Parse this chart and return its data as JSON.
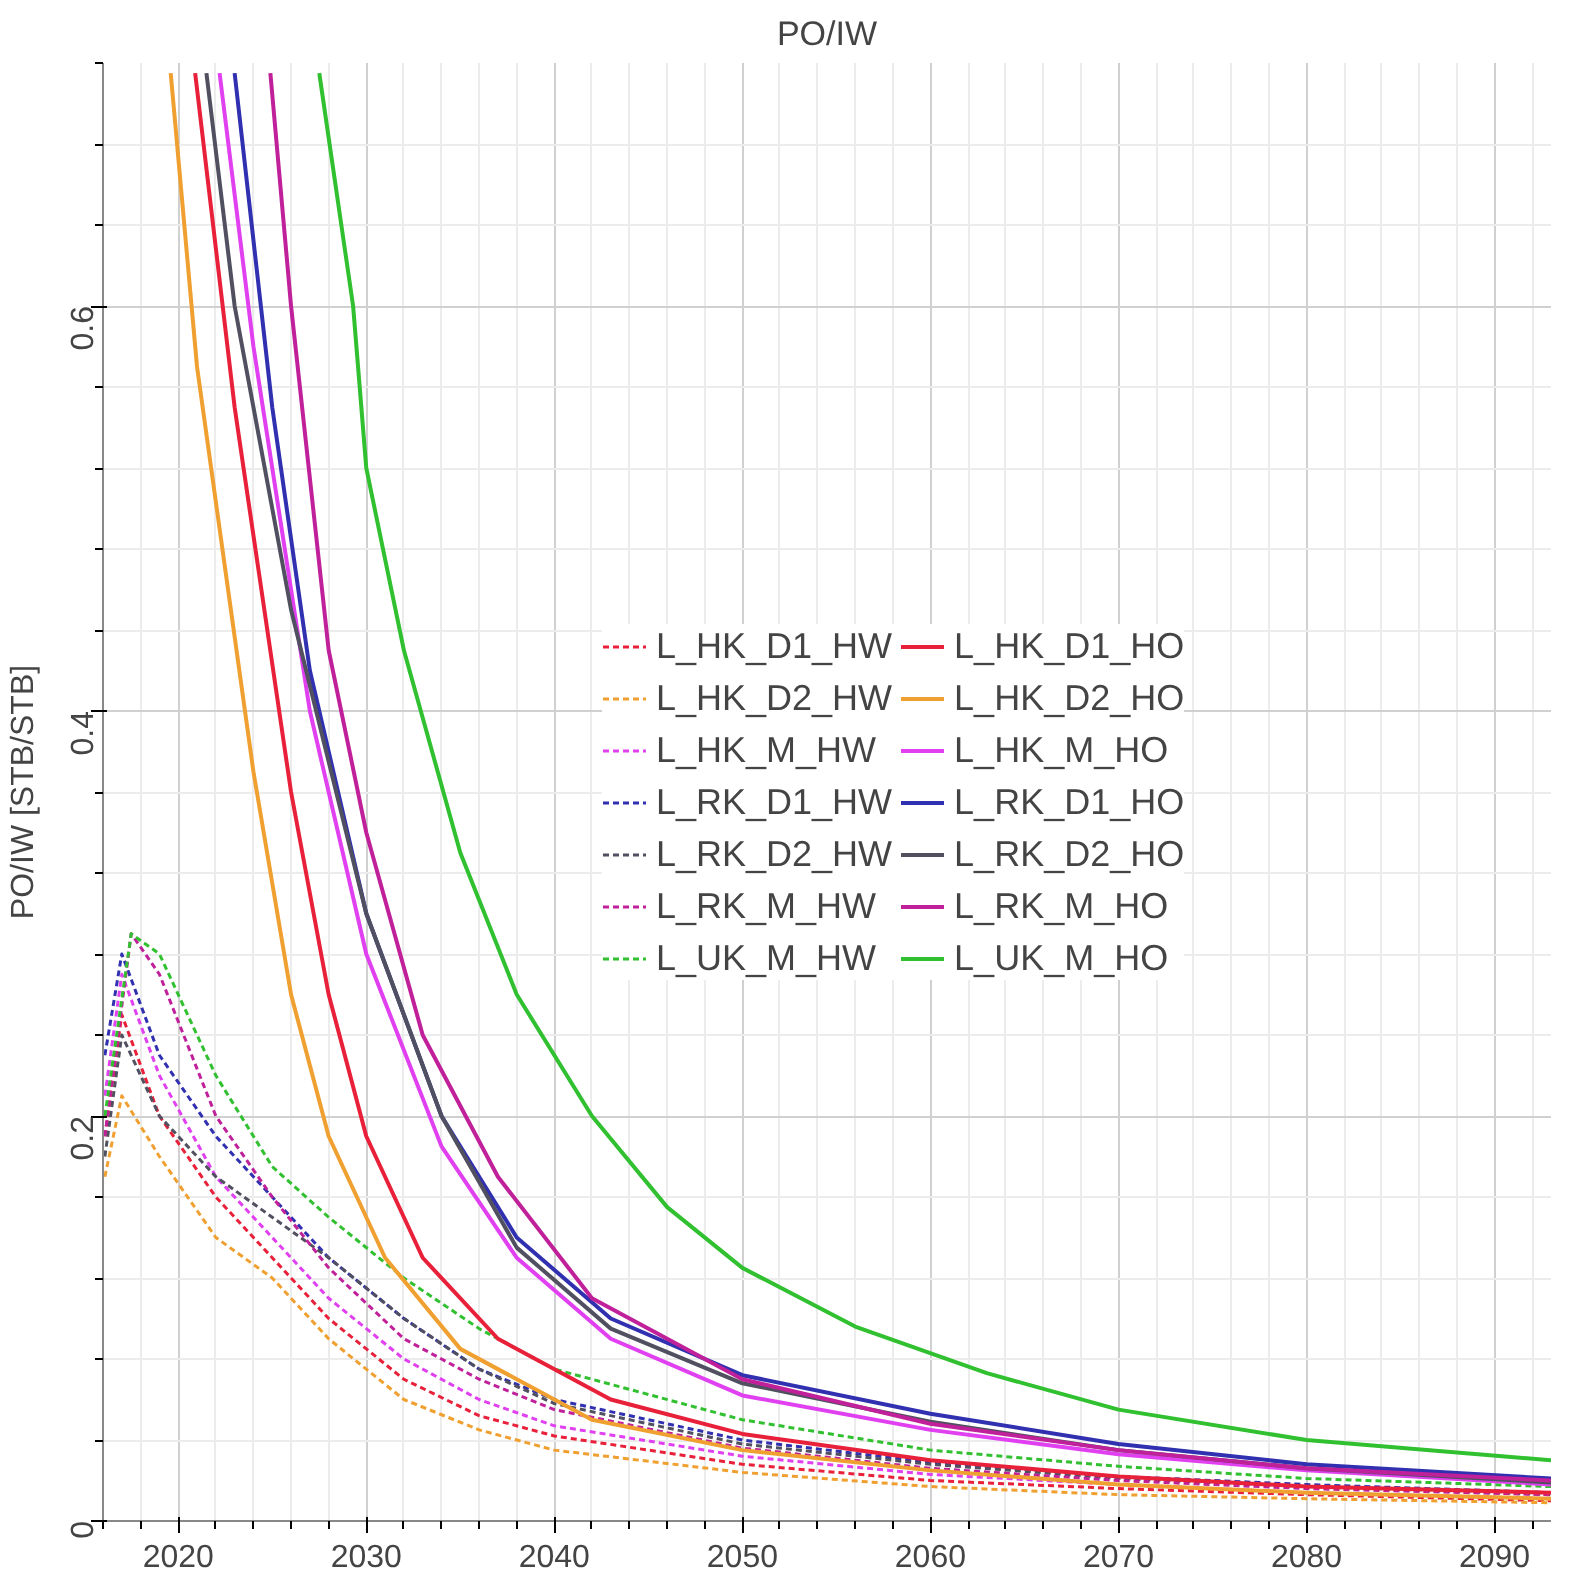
{
  "chart_data": {
    "type": "line",
    "title": "PO/IW",
    "ylabel": "PO/IW [STB/STB]",
    "xlim": [
      2016,
      2093
    ],
    "ylim": [
      0,
      0.72
    ],
    "xticks": [
      2020,
      2030,
      2040,
      2050,
      2060,
      2070,
      2080,
      2090
    ],
    "yticks": [
      0,
      0.2,
      0.4,
      0.6
    ],
    "grid": true,
    "legend": "right",
    "marker": "none",
    "series": [
      {
        "name": "L_HK_D1_HW",
        "color": "#e8203a",
        "line_style": "dashed",
        "x": [
          2016.1,
          2017,
          2019,
          2022,
          2025,
          2028,
          2032,
          2036,
          2040,
          2050,
          2060,
          2070,
          2080,
          2093
        ],
        "values": [
          0.19,
          0.25,
          0.2,
          0.16,
          0.13,
          0.1,
          0.07,
          0.052,
          0.042,
          0.028,
          0.02,
          0.016,
          0.013,
          0.01
        ]
      },
      {
        "name": "L_HK_D2_HW",
        "color": "#f0a030",
        "line_style": "dashed",
        "x": [
          2016.1,
          2017,
          2019,
          2022,
          2025,
          2028,
          2032,
          2036,
          2040,
          2050,
          2060,
          2070,
          2080,
          2093
        ],
        "values": [
          0.17,
          0.21,
          0.18,
          0.14,
          0.12,
          0.09,
          0.06,
          0.045,
          0.035,
          0.024,
          0.017,
          0.013,
          0.011,
          0.009
        ]
      },
      {
        "name": "L_HK_M_HW",
        "color": "#e040f0",
        "line_style": "dashed",
        "x": [
          2016.1,
          2017,
          2019,
          2022,
          2025,
          2028,
          2032,
          2036,
          2040,
          2050,
          2060,
          2070,
          2080,
          2093
        ],
        "values": [
          0.21,
          0.27,
          0.22,
          0.17,
          0.14,
          0.11,
          0.08,
          0.06,
          0.047,
          0.032,
          0.023,
          0.018,
          0.014,
          0.011
        ]
      },
      {
        "name": "L_RK_D1_HW",
        "color": "#3030b0",
        "line_style": "dashed",
        "x": [
          2016.1,
          2017,
          2019,
          2022,
          2025,
          2028,
          2032,
          2036,
          2040,
          2050,
          2060,
          2070,
          2080,
          2093
        ],
        "values": [
          0.23,
          0.28,
          0.23,
          0.19,
          0.16,
          0.13,
          0.1,
          0.075,
          0.06,
          0.04,
          0.029,
          0.022,
          0.018,
          0.014
        ]
      },
      {
        "name": "L_RK_D2_HW",
        "color": "#505060",
        "line_style": "dashed",
        "x": [
          2016.1,
          2017,
          2019,
          2022,
          2025,
          2028,
          2032,
          2036,
          2040,
          2050,
          2060,
          2070,
          2080,
          2093
        ],
        "values": [
          0.18,
          0.24,
          0.2,
          0.17,
          0.15,
          0.13,
          0.1,
          0.075,
          0.058,
          0.038,
          0.028,
          0.021,
          0.017,
          0.013
        ]
      },
      {
        "name": "L_RK_M_HW",
        "color": "#c0209a",
        "line_style": "dashed",
        "x": [
          2016.1,
          2017.5,
          2019,
          2022,
          2025,
          2028,
          2032,
          2036,
          2040,
          2050,
          2060,
          2070,
          2080,
          2093
        ],
        "values": [
          0.19,
          0.29,
          0.27,
          0.2,
          0.16,
          0.125,
          0.09,
          0.07,
          0.055,
          0.036,
          0.026,
          0.02,
          0.016,
          0.013
        ]
      },
      {
        "name": "L_UK_M_HW",
        "color": "#30c030",
        "line_style": "dashed",
        "x": [
          2016.1,
          2017.5,
          2019,
          2022,
          2025,
          2028,
          2032,
          2036,
          2040,
          2050,
          2060,
          2070,
          2080,
          2093
        ],
        "values": [
          0.2,
          0.29,
          0.28,
          0.22,
          0.175,
          0.15,
          0.12,
          0.095,
          0.075,
          0.05,
          0.035,
          0.027,
          0.021,
          0.017
        ]
      },
      {
        "name": "L_HK_D1_HO",
        "color": "#e8203a",
        "line_style": "solid",
        "x": [
          2020.9,
          2023,
          2026,
          2028,
          2030,
          2033,
          2037,
          2043,
          2050,
          2060,
          2070,
          2080,
          2093
        ],
        "values": [
          0.715,
          0.55,
          0.36,
          0.26,
          0.19,
          0.13,
          0.09,
          0.06,
          0.043,
          0.03,
          0.022,
          0.017,
          0.014
        ]
      },
      {
        "name": "L_HK_D2_HO",
        "color": "#f0a030",
        "line_style": "solid",
        "x": [
          2019.6,
          2021,
          2024,
          2026,
          2028,
          2031,
          2035,
          2042,
          2050,
          2060,
          2070,
          2080,
          2093
        ],
        "values": [
          0.715,
          0.57,
          0.37,
          0.26,
          0.19,
          0.13,
          0.085,
          0.05,
          0.035,
          0.025,
          0.018,
          0.014,
          0.011
        ]
      },
      {
        "name": "L_HK_M_HO",
        "color": "#e040f0",
        "line_style": "solid",
        "x": [
          2022.2,
          2024,
          2027,
          2030,
          2034,
          2038,
          2043,
          2050,
          2060,
          2070,
          2080,
          2093
        ],
        "values": [
          0.715,
          0.58,
          0.4,
          0.28,
          0.185,
          0.13,
          0.09,
          0.062,
          0.045,
          0.033,
          0.025,
          0.018
        ]
      },
      {
        "name": "L_RK_D1_HO",
        "color": "#3030b0",
        "line_style": "solid",
        "x": [
          2023,
          2025,
          2027,
          2030,
          2034,
          2038,
          2043,
          2050,
          2060,
          2070,
          2080,
          2093
        ],
        "values": [
          0.715,
          0.55,
          0.42,
          0.3,
          0.2,
          0.14,
          0.1,
          0.072,
          0.053,
          0.038,
          0.028,
          0.021
        ]
      },
      {
        "name": "L_RK_D2_HO",
        "color": "#505060",
        "line_style": "solid",
        "x": [
          2021.5,
          2023,
          2026,
          2030,
          2034,
          2038,
          2043,
          2050,
          2060,
          2070,
          2080,
          2093
        ],
        "values": [
          0.715,
          0.6,
          0.45,
          0.3,
          0.2,
          0.135,
          0.095,
          0.068,
          0.049,
          0.035,
          0.026,
          0.019
        ]
      },
      {
        "name": "L_RK_M_HO",
        "color": "#c0209a",
        "line_style": "solid",
        "x": [
          2024.9,
          2026,
          2028,
          2030,
          2033,
          2037,
          2042,
          2050,
          2060,
          2070,
          2080,
          2093
        ],
        "values": [
          0.715,
          0.6,
          0.43,
          0.34,
          0.24,
          0.17,
          0.11,
          0.07,
          0.048,
          0.035,
          0.026,
          0.02
        ]
      },
      {
        "name": "L_UK_M_HO",
        "color": "#30c030",
        "line_style": "solid",
        "x": [
          2027.5,
          2029.3,
          2030,
          2032,
          2035,
          2038,
          2042,
          2046,
          2050,
          2056,
          2063,
          2070,
          2080,
          2093
        ],
        "values": [
          0.715,
          0.6,
          0.52,
          0.43,
          0.33,
          0.26,
          0.2,
          0.155,
          0.125,
          0.096,
          0.073,
          0.055,
          0.04,
          0.03
        ]
      }
    ]
  }
}
